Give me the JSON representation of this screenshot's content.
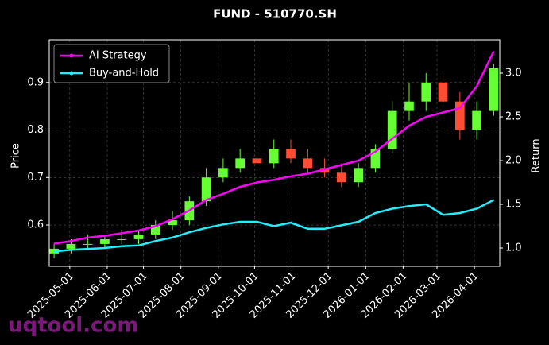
{
  "chart_data": {
    "type": "candlestick",
    "title": "FUND - 510770.SH",
    "ylabel": "Price",
    "y2label": "Return",
    "watermark": "uqtool.com",
    "legend": "upper left",
    "grid": true,
    "up_color": "#66ff33",
    "down_color": "#ff4d33",
    "x": [
      "2025-04-18",
      "2025-05-02",
      "2025-05-16",
      "2025-05-30",
      "2025-06-13",
      "2025-06-27",
      "2025-07-11",
      "2025-07-25",
      "2025-08-08",
      "2025-08-22",
      "2025-09-05",
      "2025-09-19",
      "2025-10-03",
      "2025-10-17",
      "2025-10-31",
      "2025-11-14",
      "2025-11-28",
      "2025-12-12",
      "2025-12-26",
      "2026-01-09",
      "2026-01-23",
      "2026-02-06",
      "2026-02-20",
      "2026-03-06",
      "2026-03-20",
      "2026-04-03",
      "2026-04-17"
    ],
    "open": [
      0.54,
      0.55,
      0.56,
      0.56,
      0.57,
      0.57,
      0.58,
      0.6,
      0.61,
      0.65,
      0.7,
      0.72,
      0.74,
      0.73,
      0.76,
      0.74,
      0.72,
      0.71,
      0.69,
      0.72,
      0.76,
      0.84,
      0.86,
      0.9,
      0.86,
      0.8,
      0.84
    ],
    "high": [
      0.56,
      0.57,
      0.58,
      0.58,
      0.59,
      0.59,
      0.61,
      0.63,
      0.66,
      0.72,
      0.74,
      0.76,
      0.76,
      0.78,
      0.78,
      0.76,
      0.74,
      0.73,
      0.73,
      0.77,
      0.86,
      0.9,
      0.92,
      0.92,
      0.88,
      0.86,
      0.94
    ],
    "low": [
      0.53,
      0.54,
      0.55,
      0.55,
      0.56,
      0.56,
      0.57,
      0.59,
      0.6,
      0.64,
      0.69,
      0.71,
      0.72,
      0.72,
      0.73,
      0.71,
      0.7,
      0.68,
      0.68,
      0.71,
      0.75,
      0.82,
      0.84,
      0.85,
      0.78,
      0.78,
      0.83
    ],
    "close": [
      0.55,
      0.56,
      0.56,
      0.57,
      0.57,
      0.58,
      0.6,
      0.61,
      0.65,
      0.7,
      0.72,
      0.74,
      0.73,
      0.76,
      0.74,
      0.72,
      0.71,
      0.69,
      0.72,
      0.76,
      0.84,
      0.86,
      0.9,
      0.86,
      0.8,
      0.84,
      0.93
    ],
    "series": [
      {
        "name": "AI Strategy",
        "color": "#ff00ff",
        "axis": "y2",
        "values": [
          1.05,
          1.08,
          1.12,
          1.14,
          1.17,
          1.2,
          1.25,
          1.33,
          1.43,
          1.55,
          1.62,
          1.7,
          1.75,
          1.78,
          1.82,
          1.85,
          1.9,
          1.95,
          2.0,
          2.1,
          2.25,
          2.4,
          2.5,
          2.55,
          2.6,
          2.85,
          3.25
        ]
      },
      {
        "name": "Buy-and-Hold",
        "color": "#22eeff",
        "axis": "y2",
        "values": [
          0.96,
          0.98,
          0.99,
          1.0,
          1.02,
          1.03,
          1.08,
          1.12,
          1.18,
          1.23,
          1.27,
          1.3,
          1.3,
          1.25,
          1.29,
          1.22,
          1.22,
          1.26,
          1.3,
          1.4,
          1.45,
          1.48,
          1.5,
          1.38,
          1.4,
          1.45,
          1.55
        ]
      }
    ],
    "xlim": [
      "2025-04-14",
      "2026-04-22"
    ],
    "xticks": [
      "2025-05-01",
      "2025-06-01",
      "2025-07-01",
      "2025-08-01",
      "2025-09-01",
      "2025-10-01",
      "2025-11-01",
      "2025-12-01",
      "2026-01-01",
      "2026-02-01",
      "2026-03-01",
      "2026-04-01"
    ],
    "ylim": [
      0.513,
      0.99
    ],
    "yticks": [
      0.6,
      0.7,
      0.8,
      0.9
    ],
    "y2lim": [
      0.791,
      3.382
    ],
    "y2ticks": [
      {
        "value": 1,
        "label": "1.0"
      },
      1.5,
      {
        "value": 2,
        "label": "2.0"
      },
      2.5,
      {
        "value": 3,
        "label": "3.0"
      }
    ]
  }
}
